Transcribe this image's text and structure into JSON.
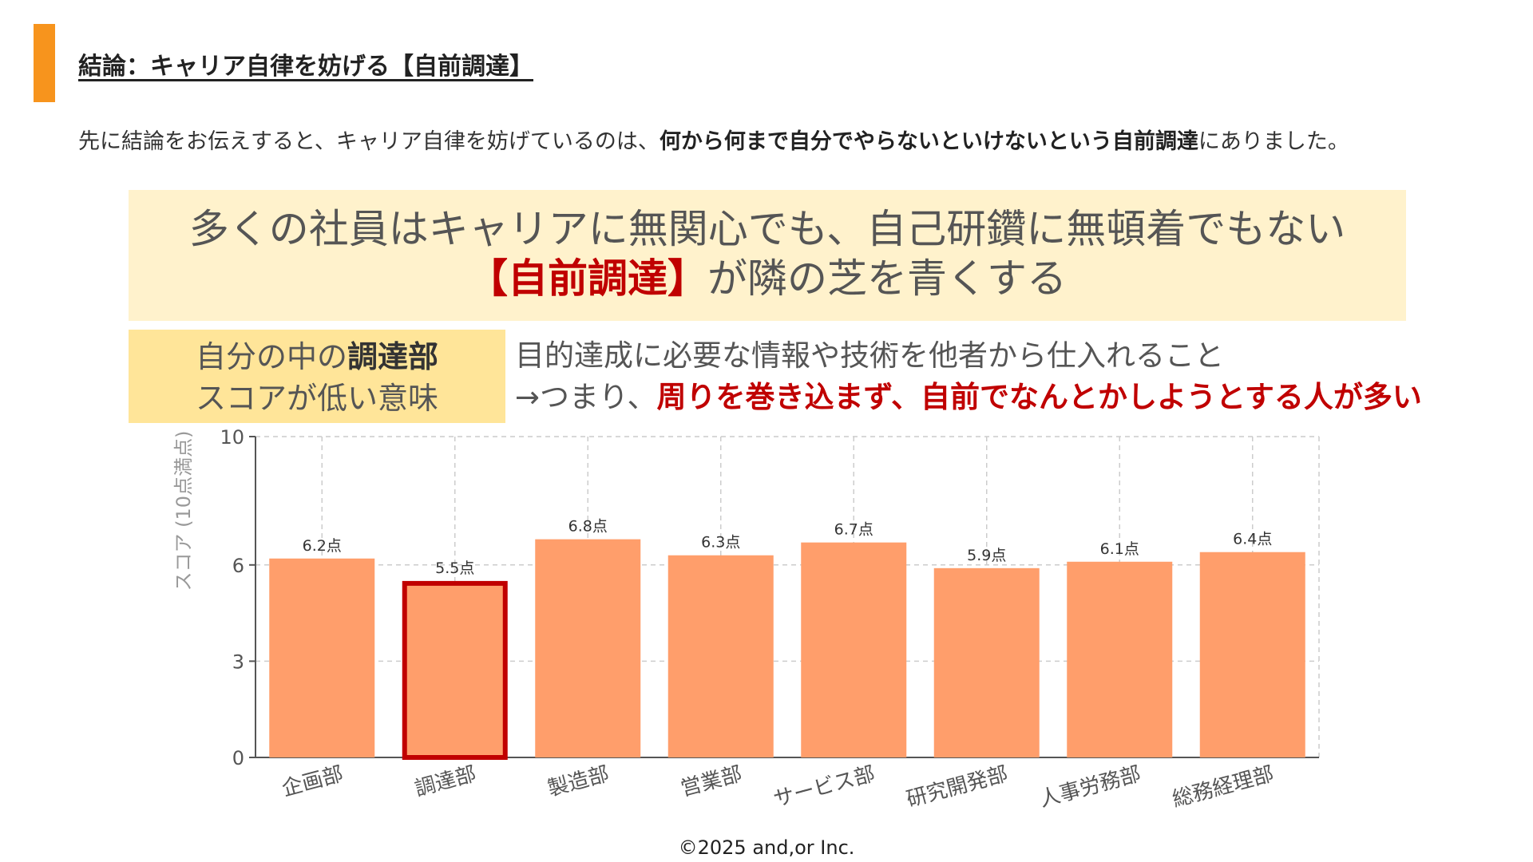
{
  "slide": {
    "title": "結論：キャリア自律を妨げる【自前調達】",
    "intro_plain_1": "先に結論をお伝えすると、キャリア自律を妨げているのは、",
    "intro_bold": "何から何まで自分でやらないといけないという自前調達",
    "intro_plain_2": "にありました。"
  },
  "headline": {
    "line1": "多くの社員はキャリアに無関心でも、自己研鑽に無頓着でもない",
    "line2_red": "【自前調達】",
    "line2_rest": "が隣の芝を青くする"
  },
  "label_box": {
    "line1_plain": "自分の中の",
    "line1_bold": "調達部",
    "line2": "スコアが低い意味"
  },
  "explanation": {
    "line1": "目的達成に必要な情報や技術を他者から仕入れること",
    "line2_plain": "→つまり、",
    "line2_red": "周りを巻き込まず、自前でなんとかしようとする人が多い"
  },
  "chart_data": {
    "type": "bar",
    "categories": [
      "企画部",
      "調達部",
      "製造部",
      "営業部",
      "サービス部",
      "研究開発部",
      "人事労務部",
      "総務経理部"
    ],
    "values": [
      6.2,
      5.5,
      6.8,
      6.3,
      6.7,
      5.9,
      6.1,
      6.4
    ],
    "value_labels": [
      "6.2点",
      "5.5点",
      "6.8点",
      "6.3点",
      "6.7点",
      "5.9点",
      "6.1点",
      "6.4点"
    ],
    "ylabel": "スコア (10点満点)",
    "ylim": [
      0,
      10
    ],
    "yticks": [
      0,
      3,
      6,
      10
    ],
    "grid": true,
    "highlight_category": "調達部",
    "bar_color": "#ff9e6b",
    "highlight_border_color": "#c00000"
  },
  "footer": {
    "copyright": "©2025 and,or Inc."
  }
}
